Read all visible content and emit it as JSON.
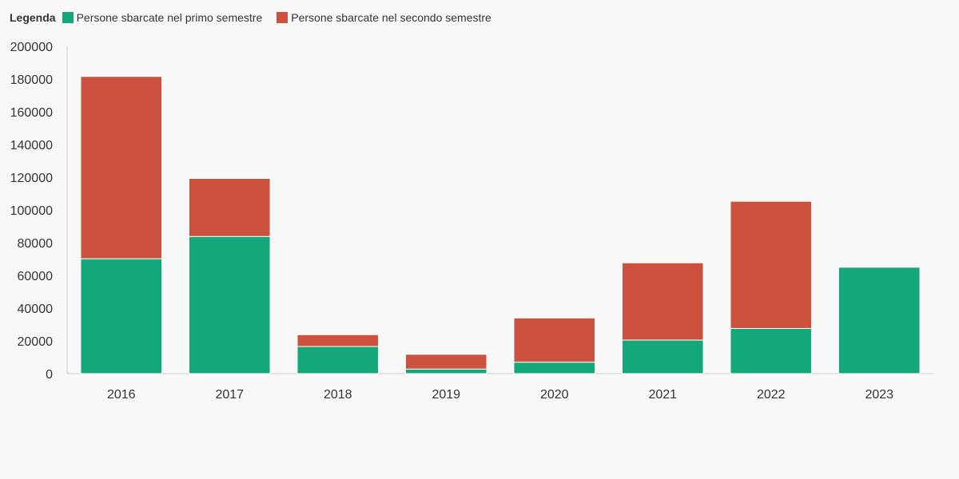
{
  "legend": {
    "title": "Legenda"
  },
  "chart_data": {
    "type": "bar",
    "stacked": true,
    "categories": [
      "2016",
      "2017",
      "2018",
      "2019",
      "2020",
      "2021",
      "2022",
      "2023"
    ],
    "series": [
      {
        "name": "Persone sbarcate nel primo semestre",
        "color": "#13a77a",
        "values": [
          70200,
          83800,
          16600,
          2800,
          7000,
          20500,
          27600,
          65000
        ]
      },
      {
        "name": "Persone sbarcate nel secondo semestre",
        "color": "#cc513f",
        "values": [
          111400,
          35500,
          7200,
          9000,
          27000,
          47200,
          77700,
          0
        ]
      }
    ],
    "ylim": [
      0,
      200000
    ],
    "yticks": [
      "0",
      "20000",
      "40000",
      "60000",
      "80000",
      "100000",
      "120000",
      "140000",
      "160000",
      "180000",
      "200000"
    ],
    "grid": false,
    "legend_position": "top-left"
  }
}
